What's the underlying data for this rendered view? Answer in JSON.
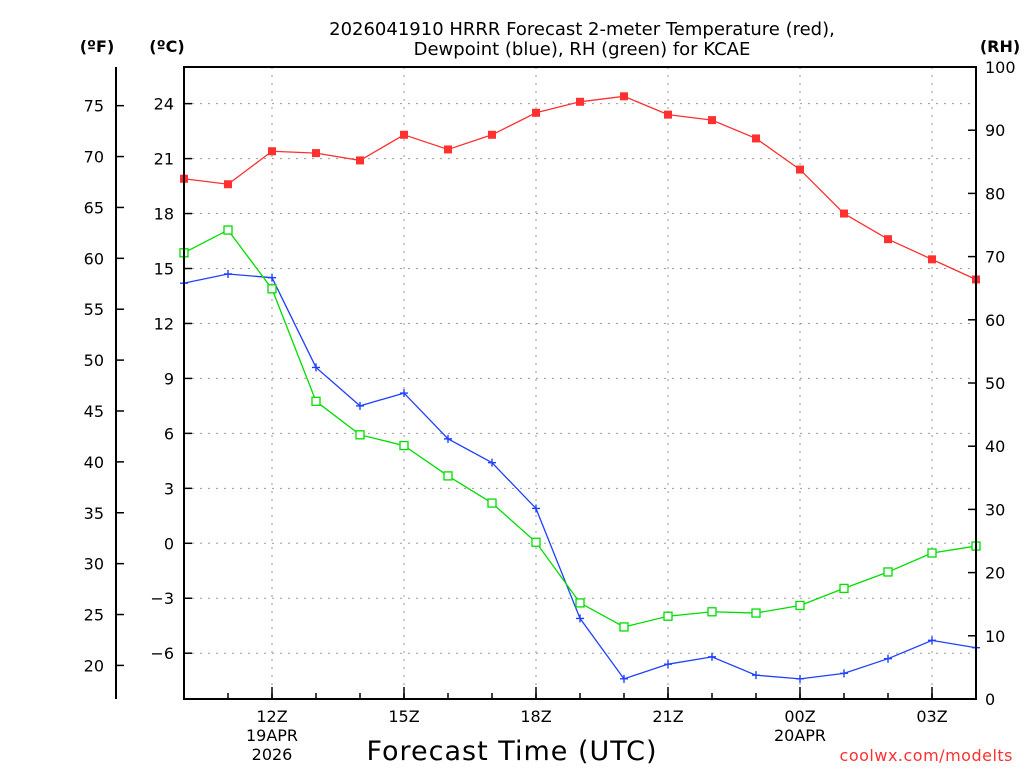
{
  "chart_data": {
    "type": "line",
    "title_line1": "2026041910 HRRR Forecast 2-meter Temperature (red),",
    "title_line2": "Dewpoint (blue), RH (green) for KCAE",
    "xlabel": "Forecast Time (UTC)",
    "credit": "coolwx.com/modelts",
    "unit_labels": {
      "fahrenheit": "(ºF)",
      "celsius": "(ºC)",
      "rh": "(RH)"
    },
    "x_range_hours": [
      0,
      18
    ],
    "x_ticks": [
      {
        "hour": 2,
        "label": "12Z",
        "sub1": "19APR",
        "sub2": "2026"
      },
      {
        "hour": 5,
        "label": "15Z",
        "sub1": "",
        "sub2": ""
      },
      {
        "hour": 8,
        "label": "18Z",
        "sub1": "",
        "sub2": ""
      },
      {
        "hour": 11,
        "label": "21Z",
        "sub1": "",
        "sub2": ""
      },
      {
        "hour": 14,
        "label": "00Z",
        "sub1": "20APR",
        "sub2": ""
      },
      {
        "hour": 17,
        "label": "03Z",
        "sub1": "",
        "sub2": ""
      }
    ],
    "celsius_axis": {
      "range": [
        -8.5,
        26
      ],
      "ticks": [
        "24",
        "21",
        "18",
        "15",
        "12",
        "9",
        "6",
        "3",
        "0",
        "−3",
        "−6"
      ]
    },
    "fahrenheit_axis": {
      "ticks": [
        "75",
        "70",
        "65",
        "60",
        "55",
        "50",
        "45",
        "40",
        "35",
        "30",
        "25",
        "20"
      ]
    },
    "rh_axis": {
      "range": [
        0,
        100
      ],
      "ticks": [
        "100",
        "90",
        "80",
        "70",
        "60",
        "50",
        "40",
        "30",
        "20",
        "10",
        "0"
      ]
    },
    "series": [
      {
        "name": "Temperature",
        "unit": "C",
        "color": "#ff3030",
        "marker": "filled-square",
        "x": [
          0,
          1,
          2,
          3,
          4,
          5,
          6,
          7,
          8,
          9,
          10,
          11,
          12,
          13,
          14,
          15,
          16,
          17,
          18
        ],
        "values": [
          19.9,
          19.6,
          21.4,
          21.3,
          20.9,
          22.3,
          21.5,
          22.3,
          23.5,
          24.1,
          24.4,
          23.4,
          23.1,
          22.1,
          20.4,
          18.0,
          16.6,
          15.5,
          14.4
        ]
      },
      {
        "name": "Dewpoint",
        "unit": "C",
        "color": "#2040ff",
        "marker": "plus",
        "x": [
          0,
          1,
          2,
          3,
          4,
          5,
          6,
          7,
          8,
          9,
          10,
          11,
          12,
          13,
          14,
          15,
          16,
          17,
          18
        ],
        "values": [
          14.2,
          14.7,
          14.5,
          9.6,
          7.5,
          8.2,
          5.7,
          4.4,
          1.9,
          -4.1,
          -7.4,
          -6.6,
          -6.2,
          -7.2,
          -7.4,
          -7.1,
          -6.3,
          -5.3,
          -5.7
        ]
      },
      {
        "name": "RH",
        "unit": "%",
        "color": "#00dd00",
        "marker": "open-square",
        "x": [
          0,
          1,
          2,
          3,
          4,
          5,
          6,
          7,
          8,
          9,
          10,
          11,
          12,
          13,
          14,
          15,
          16,
          17,
          18
        ],
        "values": [
          70.6,
          74.2,
          64.9,
          47.1,
          41.8,
          40.1,
          35.3,
          31.0,
          24.8,
          15.2,
          11.4,
          13.1,
          13.8,
          13.6,
          14.8,
          17.5,
          20.1,
          23.1,
          24.2
        ]
      }
    ]
  }
}
